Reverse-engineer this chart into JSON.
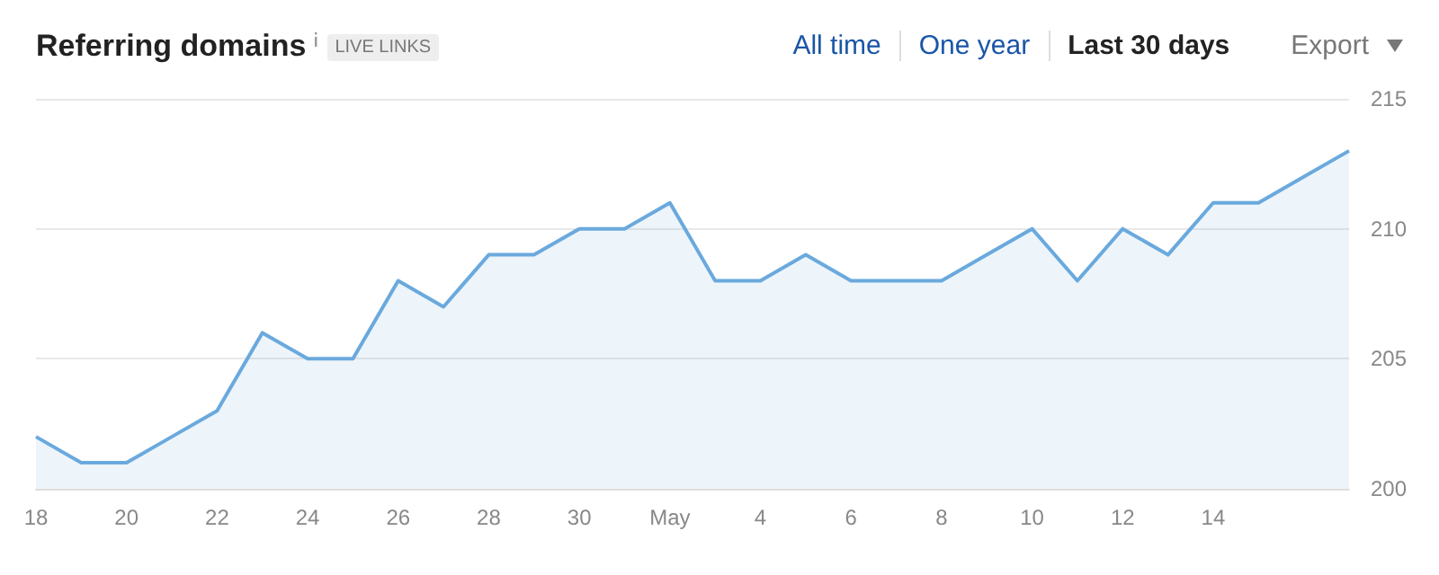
{
  "chart_data": {
    "type": "area",
    "title": "Referring domains",
    "annotations": [
      "LIVE LINKS",
      "All time",
      "One year",
      "Last 30 days",
      "Export"
    ],
    "categories": [
      "18",
      null,
      "20",
      null,
      "22",
      null,
      "24",
      null,
      "26",
      null,
      "28",
      null,
      "30",
      null,
      "May",
      null,
      "4",
      null,
      "6",
      null,
      "8",
      null,
      "10",
      null,
      "12",
      null,
      "14",
      null,
      null,
      null
    ],
    "series": [
      {
        "color": "#6aa9dd",
        "values": [
          202,
          201,
          201,
          202,
          203,
          206,
          205,
          205,
          208,
          207,
          209,
          209,
          210,
          210,
          211,
          208,
          208,
          209,
          208,
          208,
          208,
          209,
          210,
          208,
          210,
          209,
          211,
          211,
          212,
          213
        ]
      }
    ],
    "ylim": [
      200,
      215
    ],
    "yticks": [
      200,
      205,
      210,
      215
    ],
    "grid": "y",
    "marker": "none"
  }
}
